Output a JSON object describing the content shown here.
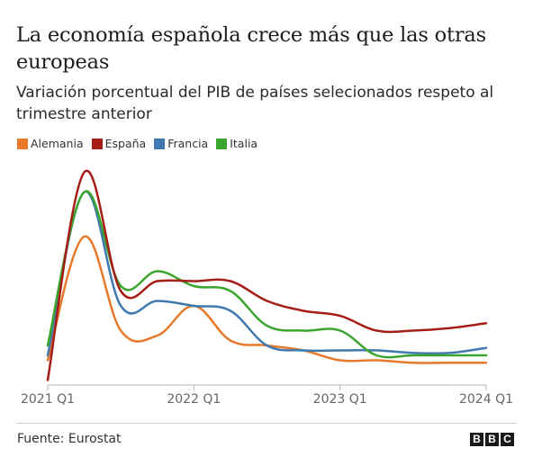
{
  "header": {
    "title": "La economía española crece más que las otras europeas",
    "subtitle": "Variación porcentual del PIB de países selecionados respeto al trimestre anterior"
  },
  "footer": {
    "source": "Fuente: Eurostat",
    "logo_letters": [
      "B",
      "B",
      "C"
    ]
  },
  "chart_data": {
    "type": "line",
    "title": "La economía española crece más que las otras europeas",
    "subtitle": "Variación porcentual del PIB de países selecionados respeto al trimestre anterior",
    "xlabel": "",
    "ylabel": "",
    "y_axis_labels_shown": false,
    "grid": false,
    "legend_position": "top-left",
    "x": [
      "2021 Q1",
      "2021 Q2",
      "2021 Q3",
      "2021 Q4",
      "2022 Q1",
      "2022 Q2",
      "2022 Q3",
      "2022 Q4",
      "2023 Q1",
      "2023 Q2",
      "2023 Q3",
      "2023 Q4",
      "2024 Q1"
    ],
    "x_tick_labels": [
      "2021 Q1",
      "2022 Q1",
      "2023 Q1",
      "2024 Q1"
    ],
    "ylim": [
      -0.6,
      4.0
    ],
    "series": [
      {
        "name": "Alemania",
        "color": "#e8792b",
        "values": [
          -0.1,
          2.4,
          0.5,
          0.4,
          1.0,
          0.3,
          0.2,
          0.1,
          -0.1,
          -0.1,
          -0.15,
          -0.15,
          -0.15
        ]
      },
      {
        "name": "España",
        "color": "#a61d16",
        "values": [
          -0.5,
          3.7,
          1.3,
          1.5,
          1.5,
          1.5,
          1.1,
          0.9,
          0.8,
          0.5,
          0.5,
          0.55,
          0.65
        ]
      },
      {
        "name": "Francia",
        "color": "#3f79b0",
        "values": [
          0.0,
          3.3,
          1.0,
          1.1,
          1.0,
          0.9,
          0.2,
          0.1,
          0.1,
          0.1,
          0.05,
          0.05,
          0.15
        ]
      },
      {
        "name": "Italia",
        "color": "#3aa52e",
        "values": [
          0.2,
          3.3,
          1.4,
          1.7,
          1.4,
          1.3,
          0.6,
          0.5,
          0.5,
          0.0,
          0.0,
          0.0,
          0.0
        ]
      }
    ]
  }
}
